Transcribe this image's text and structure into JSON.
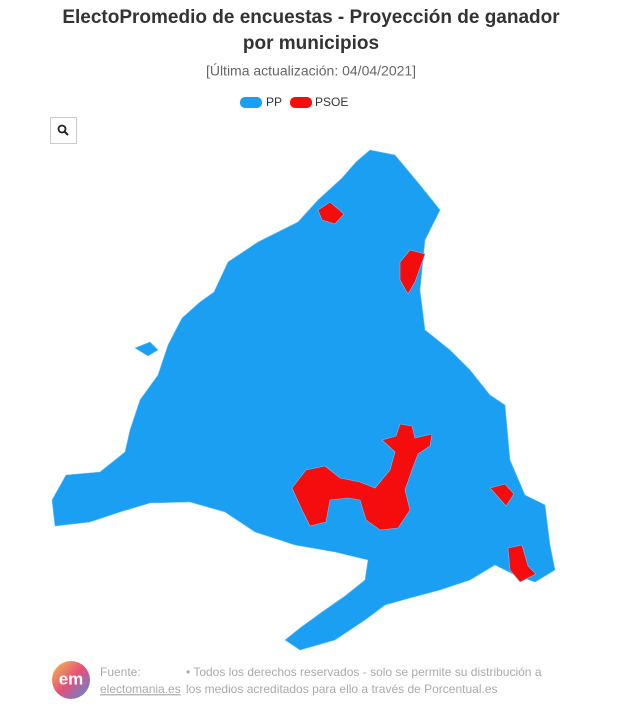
{
  "header": {
    "title_line1": "ElectoPromedio de encuestas - Proyección de ganador",
    "title_line2": "por municipios",
    "subtitle": "[Última actualización: 04/04/2021]"
  },
  "legend": [
    {
      "name": "PP",
      "color": "#1a9ff2"
    },
    {
      "name": "PSOE",
      "color": "#f50c0c"
    }
  ],
  "footer": {
    "logo": "em",
    "source_label": "Fuente:",
    "source_link": "electomania.es",
    "rights_line1": "• Todos los derechos reservados - solo se permite su distribución a",
    "rights_line2": "los medios acreditados para ello a través de Porcentual.es"
  }
}
